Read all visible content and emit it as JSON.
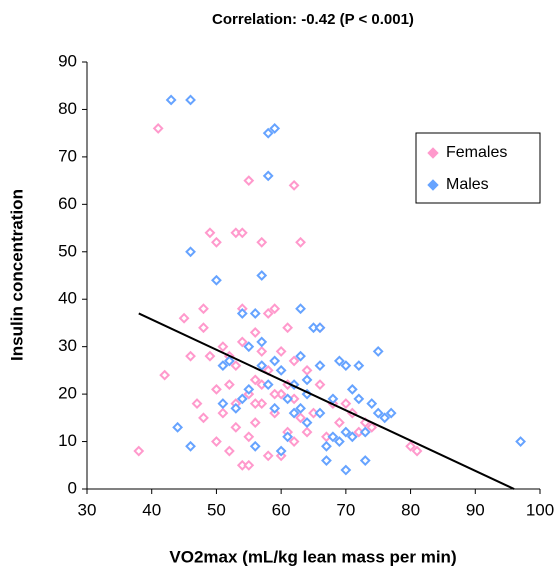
{
  "chart_data": {
    "type": "scatter",
    "title": "Correlation: -0.42 (P < 0.001)",
    "x_label": "VO2max (mL/kg lean mass per min)",
    "y_label": "Insulin concentration",
    "xlim": [
      30,
      100
    ],
    "ylim": [
      0,
      90
    ],
    "xticks": [
      30,
      40,
      50,
      60,
      70,
      80,
      90,
      100
    ],
    "yticks": [
      0,
      10,
      20,
      30,
      40,
      50,
      60,
      70,
      80,
      90
    ],
    "grid": false,
    "legend": "upper right",
    "series": [
      {
        "name": "Females",
        "color": "#ff99cc",
        "x": [
          38,
          41,
          42,
          45,
          46,
          47,
          48,
          48,
          48,
          49,
          49,
          50,
          50,
          50,
          51,
          51,
          52,
          52,
          52,
          53,
          53,
          54,
          53,
          54,
          55,
          54,
          55,
          55,
          55,
          56,
          56,
          56,
          57,
          57,
          57,
          58,
          58,
          58,
          59,
          59,
          60,
          60,
          60,
          61,
          61,
          62,
          62,
          62,
          62,
          63,
          63,
          64,
          64,
          65,
          66,
          66,
          67,
          68,
          69,
          70,
          71,
          72,
          73,
          74,
          80,
          81,
          54,
          53,
          56,
          57,
          59,
          61
        ],
        "values": [
          8,
          76,
          24,
          36,
          28,
          18,
          15,
          38,
          34,
          54,
          28,
          52,
          10,
          21,
          30,
          16,
          22,
          8,
          28,
          26,
          54,
          54,
          13,
          5,
          5,
          38,
          11,
          65,
          20,
          33,
          23,
          14,
          52,
          29,
          18,
          37,
          7,
          25,
          38,
          16,
          20,
          7,
          29,
          34,
          12,
          64,
          27,
          19,
          10,
          52,
          15,
          25,
          12,
          16,
          34,
          22,
          11,
          18,
          14,
          18,
          16,
          12,
          14,
          13,
          9,
          8,
          31,
          18,
          18,
          22,
          20,
          22
        ]
      },
      {
        "name": "Males",
        "color": "#66a3ff",
        "x": [
          43,
          46,
          44,
          46,
          46,
          50,
          51,
          51,
          52,
          53,
          54,
          54,
          55,
          55,
          56,
          56,
          57,
          57,
          57,
          58,
          58,
          59,
          58,
          59,
          59,
          60,
          60,
          61,
          61,
          62,
          63,
          63,
          63,
          64,
          64,
          65,
          66,
          66,
          66,
          67,
          67,
          68,
          68,
          69,
          69,
          70,
          70,
          70,
          71,
          71,
          72,
          72,
          73,
          73,
          74,
          75,
          75,
          76,
          77,
          97,
          62,
          64
        ],
        "values": [
          82,
          82,
          13,
          50,
          9,
          44,
          26,
          18,
          27,
          17,
          19,
          37,
          30,
          21,
          37,
          9,
          31,
          45,
          26,
          66,
          75,
          76,
          22,
          27,
          17,
          25,
          8,
          11,
          19,
          22,
          38,
          28,
          17,
          23,
          20,
          34,
          34,
          26,
          16,
          9,
          6,
          19,
          11,
          27,
          10,
          26,
          4,
          12,
          21,
          11,
          26,
          19,
          6,
          12,
          18,
          29,
          16,
          15,
          16,
          10,
          16,
          14
        ]
      }
    ],
    "trendline": {
      "x": [
        38,
        96
      ],
      "values": [
        37,
        0
      ],
      "color": "#000000"
    }
  }
}
